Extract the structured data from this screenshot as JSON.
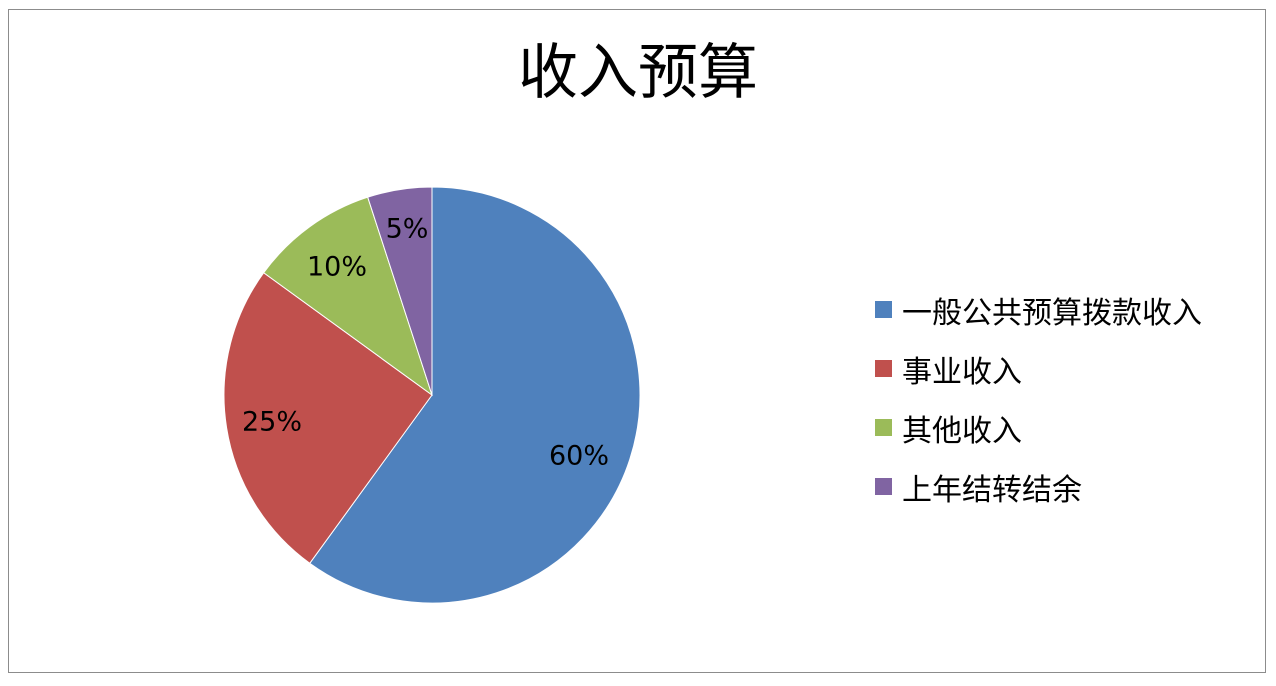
{
  "chart_data": {
    "type": "pie",
    "title": "收入预算",
    "categories": [
      "一般公共预算拨款收入",
      "事业收入",
      "其他收入",
      "上年结转结余"
    ],
    "values": [
      60,
      25,
      10,
      5
    ],
    "data_labels": [
      "60%",
      "25%",
      "10%",
      "5%"
    ],
    "colors": [
      "#4F81BD",
      "#C0504D",
      "#9BBB59",
      "#8064A2"
    ],
    "legend_position": "right"
  }
}
